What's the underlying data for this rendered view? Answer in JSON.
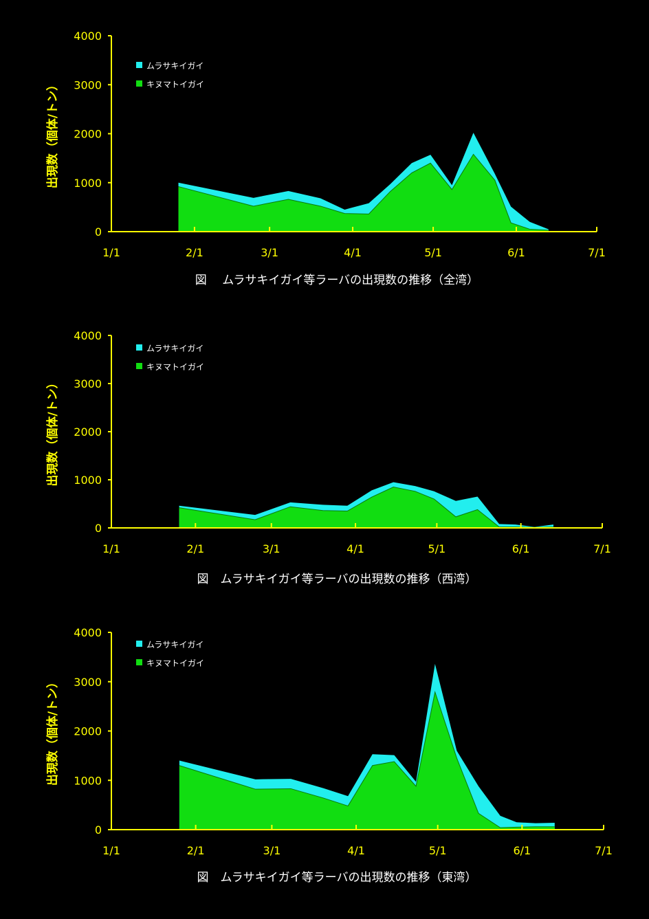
{
  "colors": {
    "background": "#000000",
    "axis": "#ffff00",
    "series_top": "#22eeee",
    "series_bottom": "#11dd11",
    "text": "#ffffff"
  },
  "chart_data": [
    {
      "type": "area",
      "title": "図　 ムラサキイガイ等ラーバの出現数の推移（全湾）",
      "ylabel": "出現数（個体/トン）",
      "xlabel": "",
      "ylim": [
        0,
        4000
      ],
      "yticks": [
        "0",
        "1000",
        "2000",
        "3000",
        "4000"
      ],
      "xticks": [
        "1/1",
        "2/1",
        "3/1",
        "4/1",
        "5/1",
        "6/1",
        "7/1"
      ],
      "legend": {
        "placement": "top-left"
      },
      "stacked": true,
      "x": [
        "1/26",
        "2/23",
        "3/8",
        "3/20",
        "3/29",
        "4/7",
        "4/15",
        "4/23",
        "4/30",
        "5/8",
        "5/16",
        "5/24",
        "5/30",
        "6/6",
        "6/13"
      ],
      "series": [
        {
          "name": "キヌマトイガイ",
          "values": [
            920,
            520,
            660,
            520,
            370,
            360,
            820,
            1200,
            1400,
            860,
            1580,
            1050,
            180,
            50,
            30
          ]
        },
        {
          "name": "ムラサキイガイ",
          "values": [
            80,
            170,
            170,
            160,
            80,
            220,
            150,
            200,
            170,
            90,
            440,
            130,
            330,
            150,
            20
          ]
        }
      ]
    },
    {
      "type": "area",
      "title": "図　ムラサキイガイ等ラーバの出現数の推移（西湾）",
      "ylabel": "出現数（個体/トン）",
      "xlabel": "",
      "ylim": [
        0,
        4000
      ],
      "yticks": [
        "0",
        "1000",
        "2000",
        "3000",
        "4000"
      ],
      "xticks": [
        "1/1",
        "2/1",
        "3/1",
        "4/1",
        "5/1",
        "6/1",
        "7/1"
      ],
      "legend": {
        "placement": "top-left"
      },
      "stacked": true,
      "x": [
        "1/26",
        "2/23",
        "3/8",
        "3/20",
        "3/29",
        "4/7",
        "4/15",
        "4/23",
        "4/30",
        "5/8",
        "5/16",
        "5/24",
        "5/30",
        "6/6",
        "6/13"
      ],
      "series": [
        {
          "name": "キヌマトイガイ",
          "values": [
            420,
            170,
            440,
            360,
            350,
            640,
            850,
            760,
            600,
            230,
            380,
            20,
            20,
            10,
            20
          ]
        },
        {
          "name": "ムラサキイガイ",
          "values": [
            40,
            100,
            90,
            120,
            110,
            140,
            100,
            110,
            160,
            330,
            270,
            60,
            50,
            10,
            50
          ]
        }
      ]
    },
    {
      "type": "area",
      "title": "図　ムラサキイガイ等ラーバの出現数の推移（東湾）",
      "ylabel": "出現数（個体/トン）",
      "xlabel": "",
      "ylim": [
        0,
        4000
      ],
      "yticks": [
        "0",
        "1000",
        "2000",
        "3000",
        "4000"
      ],
      "xticks": [
        "1/1",
        "2/1",
        "3/1",
        "4/1",
        "5/1",
        "6/1",
        "7/1"
      ],
      "legend": {
        "placement": "top-left"
      },
      "stacked": true,
      "x": [
        "1/26",
        "2/23",
        "3/8",
        "3/20",
        "3/29",
        "4/7",
        "4/15",
        "4/23",
        "4/30",
        "5/8",
        "5/16",
        "5/24",
        "5/30",
        "6/6",
        "6/13"
      ],
      "series": [
        {
          "name": "キヌマトイガイ",
          "values": [
            1300,
            820,
            830,
            640,
            480,
            1300,
            1380,
            880,
            2790,
            1450,
            330,
            40,
            50,
            60,
            60
          ]
        },
        {
          "name": "ムラサキイガイ",
          "values": [
            100,
            200,
            200,
            200,
            200,
            230,
            130,
            90,
            570,
            150,
            550,
            240,
            100,
            70,
            80
          ]
        }
      ]
    }
  ]
}
